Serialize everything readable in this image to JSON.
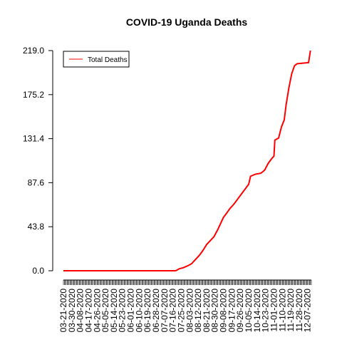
{
  "chart_data": {
    "type": "line",
    "title": "COVID-19 Uganda Deaths",
    "xlabel": "",
    "ylabel": "",
    "ylim": [
      0,
      219
    ],
    "yticks": [
      "0.0",
      "43.8",
      "87.6",
      "131.4",
      "175.2",
      "219.0"
    ],
    "xticks": [
      "03-21-2020",
      "03-30-2020",
      "04-08-2020",
      "04-17-2020",
      "04-26-2020",
      "05-05-2020",
      "05-14-2020",
      "05-23-2020",
      "06-01-2020",
      "06-10-2020",
      "06-19-2020",
      "06-28-2020",
      "07-07-2020",
      "07-16-2020",
      "07-25-2020",
      "08-03-2020",
      "08-12-2020",
      "08-21-2020",
      "08-30-2020",
      "09-08-2020",
      "09-17-2020",
      "09-26-2020",
      "10-05-2020",
      "10-14-2020",
      "10-23-2020",
      "11-01-2020",
      "11-10-2020",
      "11-19-2020",
      "11-28-2020",
      "12-07-2020"
    ],
    "x_start": "03-21-2020",
    "x_end": "12-11-2020",
    "legend": {
      "position": "top-left",
      "entries": [
        "Total Deaths"
      ]
    },
    "series": [
      {
        "name": "Total Deaths",
        "color": "#ff0000",
        "points": [
          [
            "03-21-2020",
            0
          ],
          [
            "07-19-2020",
            0
          ],
          [
            "07-23-2020",
            2
          ],
          [
            "07-27-2020",
            3
          ],
          [
            "08-01-2020",
            5
          ],
          [
            "08-05-2020",
            7
          ],
          [
            "08-09-2020",
            11
          ],
          [
            "08-13-2020",
            15
          ],
          [
            "08-17-2020",
            20
          ],
          [
            "08-21-2020",
            26
          ],
          [
            "08-25-2020",
            30
          ],
          [
            "08-29-2020",
            34
          ],
          [
            "09-02-2020",
            41
          ],
          [
            "09-05-2020",
            47
          ],
          [
            "09-08-2020",
            53
          ],
          [
            "09-12-2020",
            58
          ],
          [
            "09-15-2020",
            62
          ],
          [
            "09-19-2020",
            66
          ],
          [
            "09-23-2020",
            71
          ],
          [
            "09-27-2020",
            76
          ],
          [
            "10-01-2020",
            81
          ],
          [
            "10-05-2020",
            86
          ],
          [
            "10-07-2020",
            94
          ],
          [
            "10-12-2020",
            96
          ],
          [
            "10-18-2020",
            97
          ],
          [
            "10-22-2020",
            100
          ],
          [
            "10-26-2020",
            107
          ],
          [
            "10-30-2020",
            112
          ],
          [
            "11-01-2020",
            114
          ],
          [
            "11-02-2020",
            130
          ],
          [
            "11-06-2020",
            132
          ],
          [
            "11-09-2020",
            143
          ],
          [
            "11-12-2020",
            150
          ],
          [
            "11-14-2020",
            165
          ],
          [
            "11-17-2020",
            182
          ],
          [
            "11-20-2020",
            196
          ],
          [
            "11-23-2020",
            204
          ],
          [
            "11-26-2020",
            206
          ],
          [
            "12-08-2020",
            207
          ],
          [
            "12-10-2020",
            219
          ]
        ]
      }
    ]
  }
}
